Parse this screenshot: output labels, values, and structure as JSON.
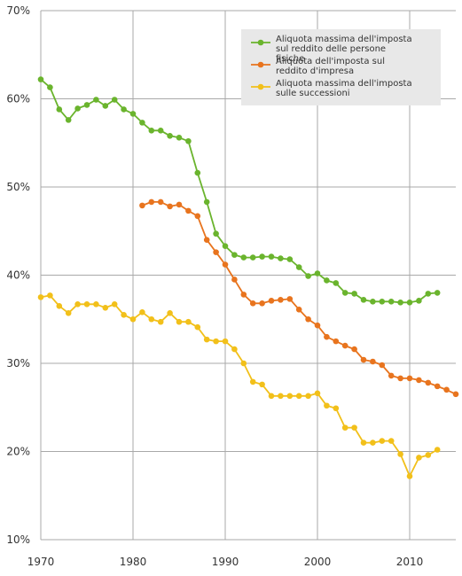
{
  "chart_data": {
    "type": "line",
    "title": "",
    "xlabel": "",
    "ylabel": "",
    "xlim": [
      1970,
      2015
    ],
    "ylim": [
      10,
      70
    ],
    "grid": true,
    "legend_placement": "top-right",
    "x_ticks": [
      "1970",
      "1980",
      "1990",
      "2000",
      "2010"
    ],
    "y_ticks": [
      "10%",
      "20%",
      "30%",
      "40%",
      "50%",
      "60%",
      "70%"
    ],
    "series": [
      {
        "name": "Aliquota massima dell'imposta sul reddito delle persone fisiche",
        "color": "#6ab42d",
        "x": [
          1970,
          1971,
          1972,
          1973,
          1974,
          1975,
          1976,
          1977,
          1978,
          1979,
          1980,
          1981,
          1982,
          1983,
          1984,
          1985,
          1986,
          1987,
          1988,
          1989,
          1990,
          1991,
          1992,
          1993,
          1994,
          1995,
          1996,
          1997,
          1998,
          1999,
          2000,
          2001,
          2002,
          2003,
          2004,
          2005,
          2006,
          2007,
          2008,
          2009,
          2010,
          2011,
          2012,
          2013
        ],
        "y": [
          62.2,
          61.3,
          58.8,
          57.6,
          58.9,
          59.3,
          59.9,
          59.2,
          59.9,
          58.8,
          58.3,
          57.3,
          56.4,
          56.4,
          55.8,
          55.6,
          55.2,
          51.6,
          48.3,
          44.7,
          43.3,
          42.3,
          42.0,
          42.0,
          42.1,
          42.1,
          41.9,
          41.8,
          40.9,
          39.9,
          40.2,
          39.4,
          39.1,
          38.0,
          37.9,
          37.2,
          37.0,
          37.0,
          37.0,
          36.9,
          36.9,
          37.1,
          37.9,
          38.0
        ]
      },
      {
        "name": "Aliquota dell'imposta sul reddito d'impresa",
        "color": "#e8741e",
        "x": [
          1981,
          1982,
          1983,
          1984,
          1985,
          1986,
          1987,
          1988,
          1989,
          1990,
          1991,
          1992,
          1993,
          1994,
          1995,
          1996,
          1997,
          1998,
          1999,
          2000,
          2001,
          2002,
          2003,
          2004,
          2005,
          2006,
          2007,
          2008,
          2009,
          2010,
          2011,
          2012,
          2013,
          2014,
          2015
        ],
        "y": [
          47.9,
          48.3,
          48.3,
          47.8,
          48.0,
          47.3,
          46.7,
          44.0,
          42.6,
          41.2,
          39.5,
          37.8,
          36.8,
          36.8,
          37.1,
          37.2,
          37.3,
          36.1,
          35.0,
          34.3,
          33.0,
          32.5,
          32.0,
          31.6,
          30.4,
          30.2,
          29.8,
          28.6,
          28.3,
          28.3,
          28.1,
          27.8,
          27.4,
          27.0,
          26.5
        ]
      },
      {
        "name": "Aliquota massima dell'imposta sulle successioni",
        "color": "#f2c01a",
        "x": [
          1970,
          1971,
          1972,
          1973,
          1974,
          1975,
          1976,
          1977,
          1978,
          1979,
          1980,
          1981,
          1982,
          1983,
          1984,
          1985,
          1986,
          1987,
          1988,
          1989,
          1990,
          1991,
          1992,
          1993,
          1994,
          1995,
          1996,
          1997,
          1998,
          1999,
          2000,
          2001,
          2002,
          2003,
          2004,
          2005,
          2006,
          2007,
          2008,
          2009,
          2010,
          2011,
          2012,
          2013
        ],
        "y": [
          37.5,
          37.7,
          36.5,
          35.7,
          36.7,
          36.7,
          36.7,
          36.3,
          36.7,
          35.5,
          35.0,
          35.8,
          35.0,
          34.7,
          35.7,
          34.7,
          34.7,
          34.1,
          32.7,
          32.5,
          32.5,
          31.6,
          30.0,
          27.9,
          27.6,
          26.3,
          26.3,
          26.3,
          26.3,
          26.3,
          26.6,
          25.2,
          24.9,
          22.7,
          22.7,
          21.0,
          21.0,
          21.2,
          21.2,
          19.7,
          17.2,
          19.3,
          19.6,
          20.2
        ]
      }
    ]
  }
}
